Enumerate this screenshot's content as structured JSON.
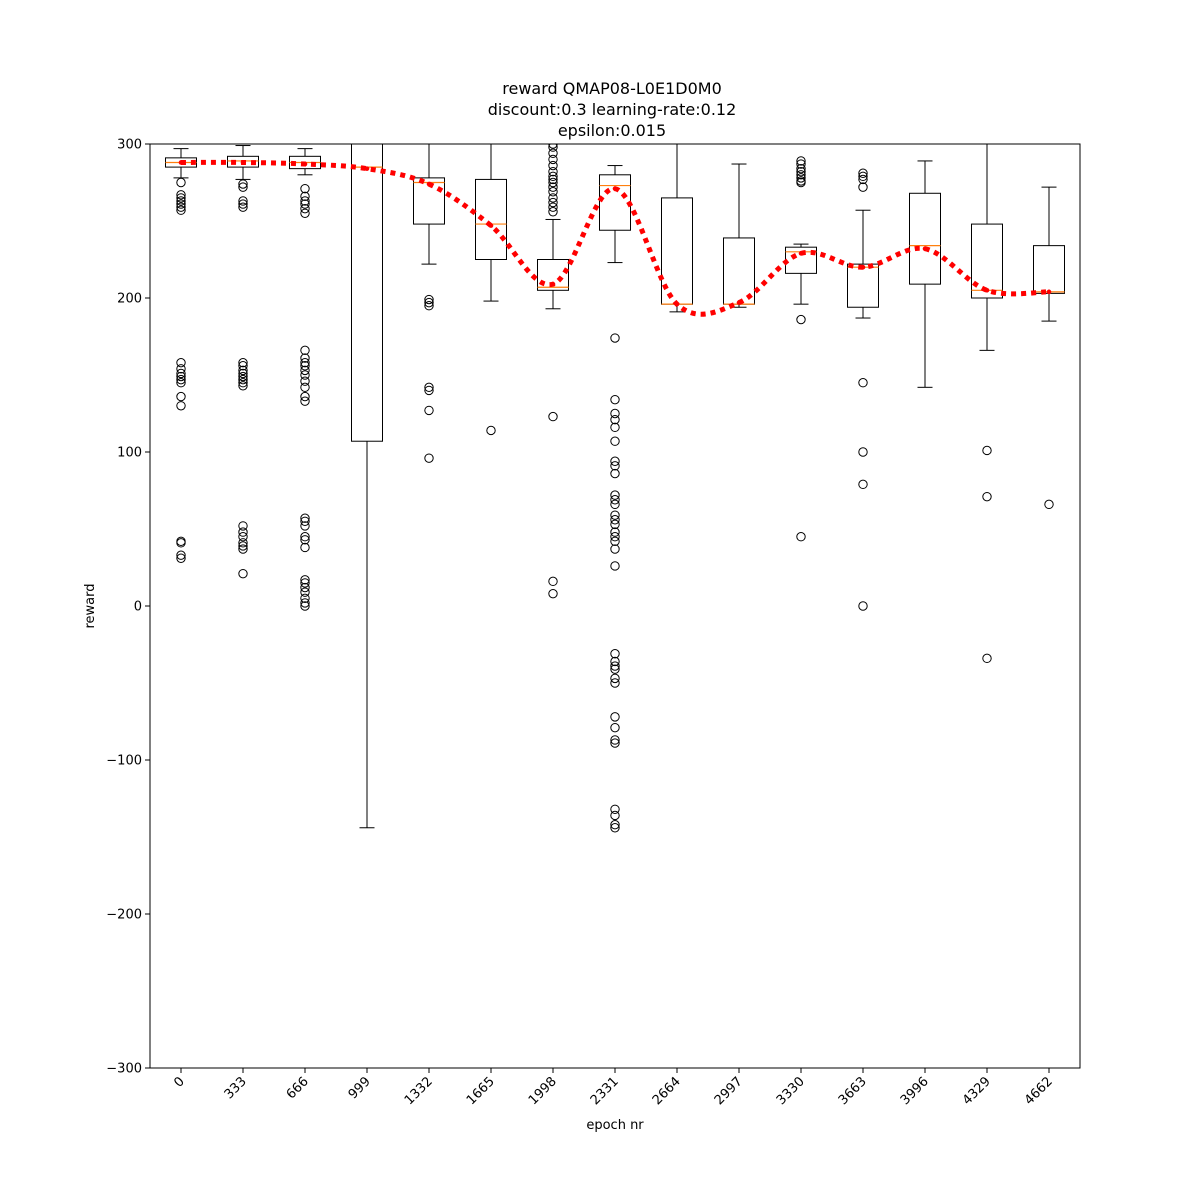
{
  "chart_data": {
    "type": "box",
    "title": [
      "reward QMAP08-L0E1D0M0",
      "discount:0.3 learning-rate:0.12",
      "epsilon:0.015"
    ],
    "xlabel": "epoch nr",
    "ylabel": "reward",
    "ylim": [
      -300,
      300
    ],
    "yticks": [
      -300,
      -200,
      -100,
      0,
      100,
      200,
      300
    ],
    "categories": [
      "0",
      "333",
      "666",
      "999",
      "1332",
      "1665",
      "1998",
      "2331",
      "2664",
      "2997",
      "3330",
      "3663",
      "3996",
      "4329",
      "4662"
    ],
    "boxes": [
      {
        "q1": 285,
        "median": 288,
        "q3": 291,
        "whisker_low": 278,
        "whisker_high": 297,
        "outliers": [
          275,
          267,
          265,
          263,
          261,
          259,
          257,
          158,
          154,
          151,
          149,
          147,
          145,
          136,
          130,
          42,
          41,
          33,
          31
        ]
      },
      {
        "q1": 285,
        "median": 289,
        "q3": 292,
        "whisker_low": 277,
        "whisker_high": 299,
        "outliers": [
          274,
          272,
          263,
          261,
          259,
          158,
          156,
          153,
          151,
          149,
          147,
          145,
          143,
          52,
          48,
          45,
          41,
          39,
          37,
          21
        ]
      },
      {
        "q1": 284,
        "median": 288,
        "q3": 292,
        "whisker_low": 280,
        "whisker_high": 297,
        "outliers": [
          271,
          266,
          263,
          261,
          258,
          255,
          166,
          161,
          158,
          156,
          153,
          150,
          146,
          142,
          136,
          133,
          57,
          55,
          52,
          45,
          43,
          38,
          17,
          15,
          12,
          9,
          5,
          2,
          0
        ]
      },
      {
        "q1": 107,
        "median": 285,
        "q3": 300,
        "whisker_low": -144,
        "whisker_high": 300,
        "outliers": []
      },
      {
        "q1": 248,
        "median": 275,
        "q3": 278,
        "whisker_low": 222,
        "whisker_high": 300,
        "outliers": [
          199,
          197,
          195,
          142,
          140,
          127,
          96
        ]
      },
      {
        "q1": 225,
        "median": 248,
        "q3": 277,
        "whisker_low": 198,
        "whisker_high": 300,
        "outliers": [
          114
        ]
      },
      {
        "q1": 205,
        "median": 207,
        "q3": 225,
        "whisker_low": 193,
        "whisker_high": 251,
        "outliers": [
          300,
          298,
          294,
          290,
          286,
          282,
          279,
          277,
          275,
          272,
          269,
          265,
          262,
          259,
          256,
          123,
          16,
          8
        ]
      },
      {
        "q1": 244,
        "median": 273,
        "q3": 280,
        "whisker_low": 223,
        "whisker_high": 286,
        "outliers": [
          174,
          134,
          125,
          121,
          116,
          107,
          94,
          91,
          86,
          72,
          69,
          66,
          59,
          56,
          53,
          48,
          45,
          42,
          37,
          26,
          -31,
          -36,
          -39,
          -41,
          -47,
          -50,
          -72,
          -79,
          -87,
          -89,
          -132,
          -136,
          -142,
          -144
        ]
      },
      {
        "q1": 196,
        "median": 196,
        "q3": 265,
        "whisker_low": 191,
        "whisker_high": 300,
        "outliers": []
      },
      {
        "q1": 196,
        "median": 196,
        "q3": 239,
        "whisker_low": 194,
        "whisker_high": 287,
        "outliers": []
      },
      {
        "q1": 216,
        "median": 230,
        "q3": 233,
        "whisker_low": 196,
        "whisker_high": 235,
        "outliers": [
          289,
          287,
          284,
          282,
          280,
          278,
          276,
          275,
          186,
          45
        ]
      },
      {
        "q1": 194,
        "median": 220,
        "q3": 222,
        "whisker_low": 187,
        "whisker_high": 257,
        "outliers": [
          281,
          279,
          277,
          272,
          145,
          100,
          79,
          0
        ]
      },
      {
        "q1": 209,
        "median": 234,
        "q3": 268,
        "whisker_low": 142,
        "whisker_high": 289,
        "outliers": []
      },
      {
        "q1": 200,
        "median": 205,
        "q3": 248,
        "whisker_low": 166,
        "whisker_high": 300,
        "outliers": [
          101,
          71,
          -34
        ]
      },
      {
        "q1": 203,
        "median": 204,
        "q3": 234,
        "whisker_low": 185,
        "whisker_high": 272,
        "outliers": [
          66
        ]
      }
    ],
    "mean_line": {
      "values": [
        288,
        288,
        287,
        284,
        274,
        247,
        209,
        271,
        196,
        197,
        229,
        220,
        232,
        205,
        204
      ],
      "color": "#ff0000",
      "style": "dotted"
    },
    "colors": {
      "box": "#000000",
      "median": "#ff7f0e",
      "mean_line": "#ff0000"
    }
  }
}
